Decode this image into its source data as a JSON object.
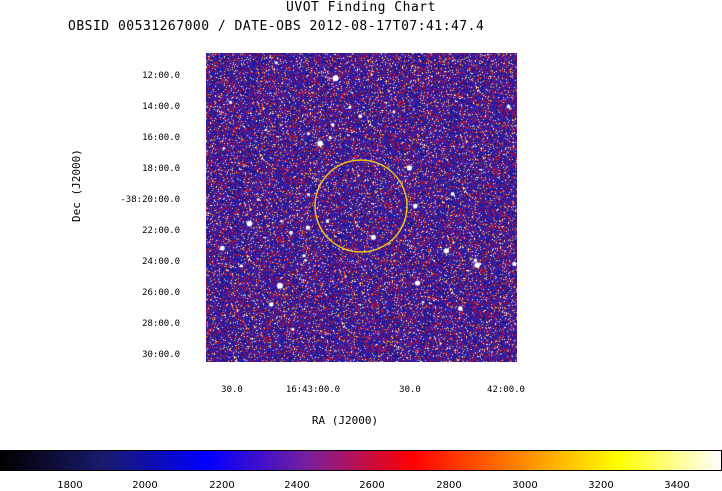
{
  "title": "UVOT Finding Chart",
  "subtitle": "OBSID 00531267000 / DATE-OBS 2012-08-17T07:41:47.4",
  "dec_axis": {
    "label": "Dec  (J2000)",
    "ticks": [
      "12:00.0",
      "14:00.0",
      "16:00.0",
      "18:00.0",
      "-38:20:00.0",
      "22:00.0",
      "24:00.0",
      "26:00.0",
      "28:00.0",
      "30:00.0"
    ]
  },
  "ra_axis": {
    "label": "RA  (J2000)",
    "ticks": [
      "30.0",
      "16:43:00.0",
      "30.0",
      "42:00.0"
    ]
  },
  "colorbar": {
    "ticks": [
      "1800",
      "2000",
      "2200",
      "2400",
      "2600",
      "2800",
      "3000",
      "3200",
      "3400"
    ],
    "stops": [
      "#000000",
      "#1a1a6e",
      "#0000ff",
      "#7a1f9a",
      "#ff0000",
      "#ff8000",
      "#ffff00",
      "#ffffff"
    ]
  },
  "colors": {
    "circle": "#e6c020",
    "noise_base": "#2a1fb0"
  }
}
